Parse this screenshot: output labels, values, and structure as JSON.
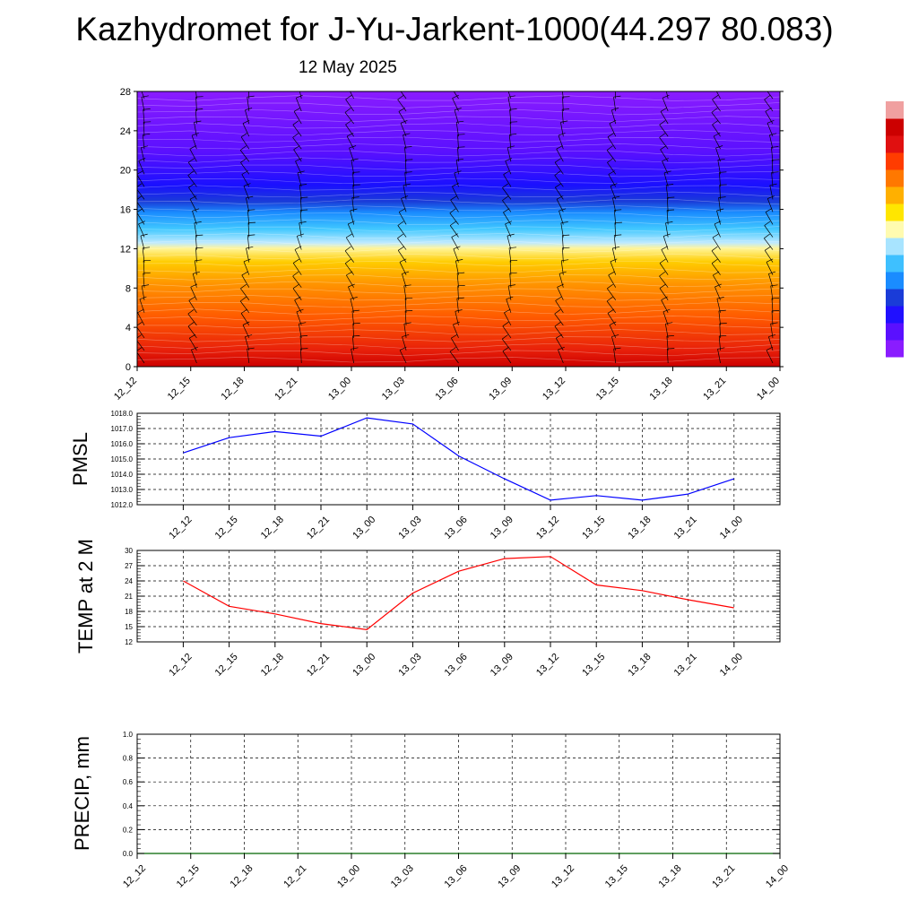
{
  "header": {
    "title": "Kazhydromet for J-Yu-Jarkent-1000(44.297 80.083)",
    "date": "12 May 2025"
  },
  "time_labels": [
    "12_12",
    "12_15",
    "12_18",
    "12_21",
    "13_00",
    "13_03",
    "13_06",
    "13_09",
    "13_12",
    "13_15",
    "13_18",
    "13_21",
    "14_00"
  ],
  "colors": {
    "pmsl_line": "#0000ff",
    "temp_line": "#ff0000",
    "precip_line": "#006400",
    "grid": "#000000"
  },
  "chart_data": [
    {
      "type": "heatmap",
      "name": "vertical-profile",
      "x": [
        "12_12",
        "12_15",
        "12_18",
        "12_21",
        "13_00",
        "13_03",
        "13_06",
        "13_09",
        "13_12",
        "13_15",
        "13_18",
        "13_21",
        "14_00"
      ],
      "yticks": [
        "0",
        "4",
        "8",
        "12",
        "16",
        "20",
        "24",
        "28"
      ],
      "ylim": [
        0,
        28
      ],
      "colormap": [
        "#cc0000",
        "#e8200a",
        "#ff5a00",
        "#ff9400",
        "#ffcc00",
        "#fff59a",
        "#bfeaff",
        "#41c8ff",
        "#1a8cff",
        "#1a3cd8",
        "#1a10ff",
        "#5a10ff",
        "#8a1cff"
      ],
      "colorbar_colors": [
        "#8a1cff",
        "#5a10ff",
        "#2010ff",
        "#1a3cd8",
        "#1a8cff",
        "#3ec0ff",
        "#a8e4ff",
        "#fffbb0",
        "#ffe600",
        "#ffb000",
        "#ff7800",
        "#ff3c00",
        "#e01010",
        "#cc0000",
        "#f0a0a0"
      ],
      "wind_barbs": true
    },
    {
      "type": "line",
      "name": "pmsl",
      "ylabel": "PMSL",
      "ylim": [
        1012.0,
        1018.0
      ],
      "yticks": [
        "1012.0",
        "1013.0",
        "1014.0",
        "1015.0",
        "1016.0",
        "1017.0",
        "1018.0"
      ],
      "categories": [
        "12_12",
        "12_15",
        "12_18",
        "12_21",
        "13_00",
        "13_03",
        "13_06",
        "13_09",
        "13_12",
        "13_15",
        "13_18",
        "13_21",
        "14_00"
      ],
      "values": [
        1015.4,
        1016.4,
        1016.8,
        1016.5,
        1017.7,
        1017.3,
        1015.2,
        1013.7,
        1012.3,
        1012.6,
        1012.3,
        1012.7,
        1013.7
      ],
      "grid": true
    },
    {
      "type": "line",
      "name": "temp",
      "ylabel": "TEMP at 2 M",
      "ylim": [
        12,
        30
      ],
      "yticks": [
        "12",
        "15",
        "18",
        "21",
        "24",
        "27",
        "30"
      ],
      "categories": [
        "12_12",
        "12_15",
        "12_18",
        "12_21",
        "13_00",
        "13_03",
        "13_06",
        "13_09",
        "13_12",
        "13_15",
        "13_18",
        "13_21",
        "14_00"
      ],
      "values": [
        24.0,
        19.0,
        17.5,
        15.6,
        14.4,
        21.6,
        25.9,
        28.4,
        28.8,
        23.2,
        22.1,
        20.3,
        18.7
      ],
      "grid": true
    },
    {
      "type": "line",
      "name": "precip",
      "ylabel": "PRECIP, mm",
      "ylim": [
        0,
        1.0
      ],
      "yticks": [
        "0.0",
        "0.2",
        "0.4",
        "0.6",
        "0.8",
        "1.0"
      ],
      "categories": [
        "12_12",
        "12_15",
        "12_18",
        "12_21",
        "13_00",
        "13_03",
        "13_06",
        "13_09",
        "13_12",
        "13_15",
        "13_18",
        "13_21",
        "14_00"
      ],
      "values": [
        0,
        0,
        0,
        0,
        0,
        0,
        0,
        0,
        0,
        0,
        0,
        0,
        0
      ],
      "grid": true
    }
  ]
}
